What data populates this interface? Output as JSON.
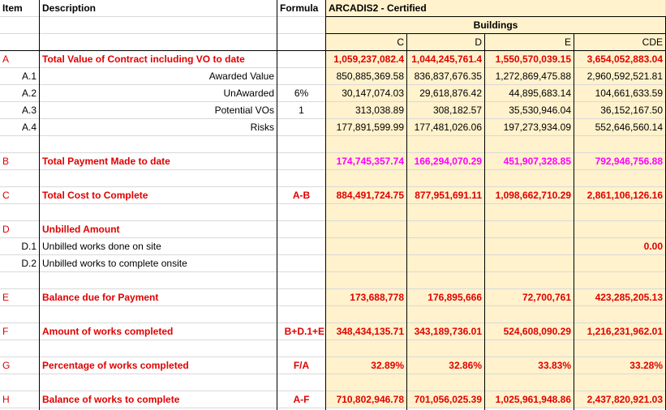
{
  "header": {
    "item": "Item",
    "description": "Description",
    "formula": "Formula",
    "title": "ARCADIS2 - Certified",
    "group": "Buildings",
    "cols": [
      "C",
      "D",
      "E",
      "CDE"
    ]
  },
  "rows": {
    "A": {
      "item": "A",
      "desc": "Total Value of Contract including VO to date",
      "formula": "",
      "v": [
        "1,059,237,082.4",
        "1,044,245,761.4",
        "1,550,570,039.15",
        "3,654,052,883.04"
      ]
    },
    "A1": {
      "item": "A.1",
      "desc": "Awarded Value",
      "formula": "",
      "v": [
        "850,885,369.58",
        "836,837,676.35",
        "1,272,869,475.88",
        "2,960,592,521.81"
      ]
    },
    "A2": {
      "item": "A.2",
      "desc": "UnAwarded",
      "formula": "6%",
      "v": [
        "30,147,074.03",
        "29,618,876.42",
        "44,895,683.14",
        "104,661,633.59"
      ]
    },
    "A3": {
      "item": "A.3",
      "desc": "Potential VOs",
      "formula": "1",
      "v": [
        "313,038.89",
        "308,182.57",
        "35,530,946.04",
        "36,152,167.50"
      ]
    },
    "A4": {
      "item": "A.4",
      "desc": "Risks",
      "formula": "",
      "v": [
        "177,891,599.99",
        "177,481,026.06",
        "197,273,934.09",
        "552,646,560.14"
      ]
    },
    "B": {
      "item": "B",
      "desc": "Total Payment Made to date",
      "formula": "",
      "v": [
        "174,745,357.74",
        "166,294,070.29",
        "451,907,328.85",
        "792,946,756.88"
      ]
    },
    "C": {
      "item": "C",
      "desc": "Total Cost to Complete",
      "formula": "A-B",
      "v": [
        "884,491,724.75",
        "877,951,691.11",
        "1,098,662,710.29",
        "2,861,106,126.16"
      ]
    },
    "D": {
      "item": "D",
      "desc": "Unbilled Amount",
      "formula": "",
      "v": [
        "",
        "",
        "",
        ""
      ]
    },
    "D1": {
      "item": "D.1",
      "desc": "Unbilled works done on site",
      "formula": "",
      "v": [
        "",
        "",
        "",
        "0.00"
      ]
    },
    "D2": {
      "item": "D.2",
      "desc": "Unbilled works to complete onsite",
      "formula": "",
      "v": [
        "",
        "",
        "",
        ""
      ]
    },
    "E": {
      "item": "E",
      "desc": "Balance due for Payment",
      "formula": "",
      "v": [
        "173,688,778",
        "176,895,666",
        "72,700,761",
        "423,285,205.13"
      ]
    },
    "F": {
      "item": "F",
      "desc": "Amount of works completed",
      "formula": "B+D.1+E",
      "v": [
        "348,434,135.71",
        "343,189,736.01",
        "524,608,090.29",
        "1,216,231,962.01"
      ]
    },
    "G": {
      "item": "G",
      "desc": "Percentage of works completed",
      "formula": "F/A",
      "v": [
        "32.89%",
        "32.86%",
        "33.83%",
        "33.28%"
      ]
    },
    "H": {
      "item": "H",
      "desc": "Balance of works to complete",
      "formula": "A-F",
      "v": [
        "710,802,946.78",
        "701,056,025.39",
        "1,025,961,948.86",
        "2,437,820,921.03"
      ]
    }
  }
}
